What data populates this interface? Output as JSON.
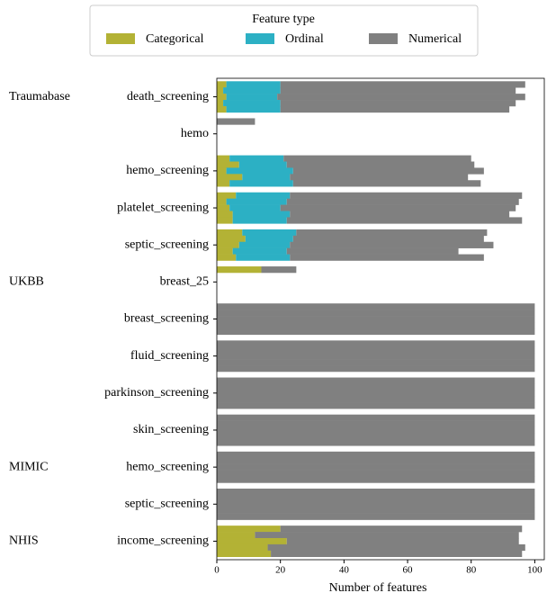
{
  "chart_data": {
    "type": "stacked-bar-horizontal",
    "legend_title": "Feature type",
    "xlabel": "Number of features",
    "categories": [
      "death_screening",
      "hemo",
      "hemo_screening",
      "platelet_screening",
      "septic_screening",
      "breast_25",
      "breast_screening",
      "fluid_screening",
      "parkinson_screening",
      "skin_screening",
      "hemo_screening",
      "septic_screening",
      "income_screening"
    ],
    "groups": [
      "Traumabase",
      null,
      null,
      null,
      null,
      "UKBB",
      null,
      null,
      null,
      null,
      "MIMIC",
      null,
      "NHIS"
    ],
    "series": [
      {
        "name": "Categorical",
        "color": "#b3b235",
        "values": [
          [
            3,
            2,
            3,
            2,
            3
          ],
          [
            0
          ],
          [
            4,
            7,
            3,
            8,
            4
          ],
          [
            6,
            3,
            4,
            5,
            5
          ],
          [
            8,
            9,
            7,
            5,
            6
          ],
          [
            14
          ],
          [
            0,
            0,
            0,
            0,
            0
          ],
          [
            0,
            0,
            0,
            0,
            0
          ],
          [
            0,
            0,
            0,
            0,
            0
          ],
          [
            0,
            0,
            0,
            0,
            0
          ],
          [
            0,
            0,
            0,
            0,
            0
          ],
          [
            0,
            0,
            0,
            0,
            0
          ],
          [
            20,
            12,
            22,
            16,
            17
          ]
        ]
      },
      {
        "name": "Ordinal",
        "color": "#2cb0c4",
        "values": [
          [
            17,
            18,
            16,
            18,
            17
          ],
          [
            0
          ],
          [
            17,
            15,
            21,
            15,
            20
          ],
          [
            17,
            19,
            16,
            18,
            17
          ],
          [
            17,
            15,
            16,
            17,
            17
          ],
          [
            0
          ],
          [
            0,
            0,
            0,
            0,
            0
          ],
          [
            0,
            0,
            0,
            0,
            0
          ],
          [
            0,
            0,
            0,
            0,
            0
          ],
          [
            0,
            0,
            0,
            0,
            0
          ],
          [
            0,
            0,
            0,
            0,
            0
          ],
          [
            0,
            0,
            0,
            0,
            0
          ],
          [
            0,
            0,
            0,
            0,
            0
          ]
        ]
      },
      {
        "name": "Numerical",
        "color": "#808080",
        "values": [
          [
            77,
            74,
            78,
            74,
            72
          ],
          [
            12
          ],
          [
            59,
            59,
            60,
            56,
            59
          ],
          [
            73,
            73,
            74,
            69,
            74
          ],
          [
            60,
            60,
            64,
            54,
            61
          ],
          [
            11
          ],
          [
            100,
            100,
            100,
            100,
            100
          ],
          [
            100,
            100,
            100,
            100,
            100
          ],
          [
            100,
            100,
            100,
            100,
            100
          ],
          [
            100,
            100,
            100,
            100,
            100
          ],
          [
            100,
            100,
            100,
            100,
            100
          ],
          [
            100,
            100,
            100,
            100,
            100
          ],
          [
            76,
            83,
            73,
            81,
            79
          ]
        ]
      }
    ],
    "xlim": [
      0,
      103
    ],
    "xticks": [
      0,
      20,
      40,
      60,
      80,
      100
    ]
  }
}
